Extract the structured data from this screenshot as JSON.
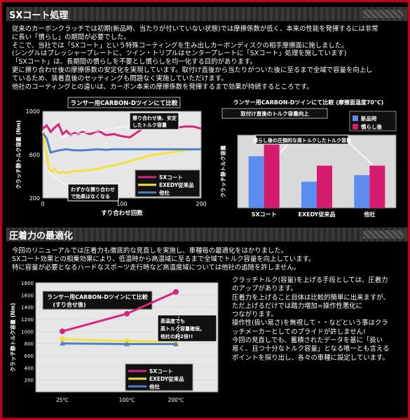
{
  "section1": {
    "title": "SXコート処理",
    "lines": [
      "従来のカーボンクラッチでは初期(新品時、当たりが付いていない状態)では摩擦係数が低く、本来の性能を発揮するには非常",
      "に長い「慣らし」の期間が必要でした。",
      "そこで、当社では「SXコート」という特殊コーティングを生み出しカーボンディスクの相手摩擦面に施しました。",
      "(シングルはプレッシャープレートに、ツイン・トリプルはセンタープレートに「SXコート」処理を施しています)",
      "「SXコート」は、長期間の慣らしを不要とし慣らしを均一化する目的があります。",
      "更に擦り合わせ後の摩擦係数の安定化を実現しています。取付け直後から当たりがついた後に至るまで全域で容量を向上し",
      "ているため、装着直後のセッティングも問題なく実施していただけます。",
      "他社のコーティングとの違いは、カーボン本来の摩擦係数を発揮するまで効果が持続するところです。"
    ]
  },
  "chart1": {
    "chart_data": {
      "type": "line",
      "title": "ランサー用CARBON-Dツインにて比較",
      "xlabel": "すり合わせ回数",
      "ylabel": "クラッチ静トルク容量 (Nm)",
      "xlim": [
        0,
        200
      ],
      "ylim": [
        200,
        1000
      ],
      "xticks": [
        "0",
        "100",
        "200"
      ],
      "yticks": [
        "200",
        "600",
        "1000"
      ],
      "series": [
        {
          "name": "SXコート",
          "color": "#d6257d",
          "x": [
            0,
            5,
            10,
            15,
            20,
            25,
            30,
            35,
            40,
            45,
            50,
            60,
            70,
            80,
            90,
            100,
            110,
            120,
            130,
            140,
            150,
            160,
            170,
            180,
            190,
            200
          ],
          "y": [
            840,
            870,
            810,
            850,
            880,
            790,
            820,
            780,
            800,
            790,
            810,
            790,
            820,
            780,
            790,
            770,
            760,
            810,
            860,
            870,
            860,
            860,
            850,
            860,
            860,
            840
          ]
        },
        {
          "name": "EXEDY従来品",
          "color": "#f2e23a",
          "x": [
            0,
            5,
            8,
            12,
            15,
            20,
            25,
            30,
            40,
            50,
            60,
            70,
            80,
            90,
            100,
            110,
            120,
            130,
            140,
            150,
            160,
            170,
            180,
            190,
            200
          ],
          "y": [
            820,
            600,
            470,
            440,
            470,
            430,
            440,
            430,
            450,
            450,
            460,
            470,
            490,
            500,
            520,
            540,
            560,
            580,
            600,
            610,
            620,
            630,
            640,
            650,
            650
          ]
        },
        {
          "name": "他社",
          "color": "#4f7ec9",
          "x": [
            0,
            5,
            10,
            20,
            30,
            40,
            50,
            60,
            70,
            80,
            90,
            100,
            110,
            120,
            130,
            140,
            150,
            160,
            170,
            180,
            190,
            200
          ],
          "y": [
            800,
            750,
            620,
            640,
            650,
            640,
            640,
            645,
            650,
            645,
            650,
            650,
            650,
            650,
            650,
            650,
            650,
            650,
            650,
            650,
            650,
            650
          ]
        }
      ],
      "legend": "bottom-right",
      "annotations": [
        "擦り合わせ後、安定したトルク容量",
        "わずかな擦り合わせで効果はなくなる"
      ]
    }
  },
  "chart2": {
    "chart_data": {
      "type": "bar",
      "title": "ランサー用CARBON-Dツインにて比較 (摩擦面温度70℃)",
      "subtitle": "取付け直後のトルク容量向上",
      "ylabel": "クラッチ静トルク容量",
      "categories": [
        "SXコート",
        "EXEDY従来品",
        "他社"
      ],
      "series": [
        {
          "name": "新品時",
          "color": "#5b8def",
          "values": [
            910,
            560,
            650
          ]
        },
        {
          "name": "慣らし後",
          "color": "#d61a6e",
          "values": [
            1100,
            780,
            780
          ]
        }
      ],
      "ylim": [
        200,
        1200
      ],
      "legend": "top-right",
      "annotation": "慣らし後の圧倒的な高トルクしたトルク容量"
    }
  },
  "section2": {
    "title": "圧着力の最適化",
    "lines": [
      "今回のリニューアルでは圧着力も徹底的な見直しを実施し、車種毎の最適化をはかりました。",
      "SXコート効果との相乗効果により、低温時から高温域に至るまで全域でトルク容量を向上しています。",
      "特に容量が必要となるハードなスポーツ走行時など高温度域については他社の追随を許しません。"
    ]
  },
  "chart3": {
    "chart_data": {
      "type": "line",
      "title": "ランサー用CARBON-Dツインにて比較",
      "subtitle": "(すり合せ後)",
      "ylabel": "クラッチ静トルク容量 (Nm)",
      "categories": [
        "25℃",
        "100℃",
        "200℃"
      ],
      "yticks": [
        "200",
        "400",
        "600",
        "800",
        "1000",
        "1200",
        "1400",
        "1600",
        "1800"
      ],
      "ylim": [
        0,
        1800
      ],
      "series": [
        {
          "name": "SXコート",
          "color": "#d6257d",
          "values": [
            1000,
            1290,
            1650
          ]
        },
        {
          "name": "EXEDY従来品",
          "color": "#f2e23a",
          "values": [
            870,
            840,
            820
          ]
        },
        {
          "name": "他社",
          "color": "#4f7ec9",
          "values": [
            800,
            790,
            790
          ]
        }
      ],
      "legend": "bottom-right",
      "annotation": [
        "高温度でも",
        "高トルク容量確保。",
        "他社の約2倍!!"
      ]
    }
  },
  "section2_side": {
    "lines": [
      "クラッチトルク(容量)を上げる手段としては、圧着力",
      "のアップがあります。",
      "圧着力を上げること自体は比較的簡単に出来ますが、",
      "ただ上げるだけでは踏力増加=操作性悪化に",
      "つながります。",
      "操作性(扱い易さ)を無視して・・などという事はクラ",
      "ッチメーカーとしてのプライドが許しません!",
      "今回の見直しでも、蓄積されたデータを基に「扱い",
      "易く、且つ十分なトルク容量」となる唯一とも言える",
      "ポイントを探り出し、各々の車種に設定しています。"
    ]
  }
}
